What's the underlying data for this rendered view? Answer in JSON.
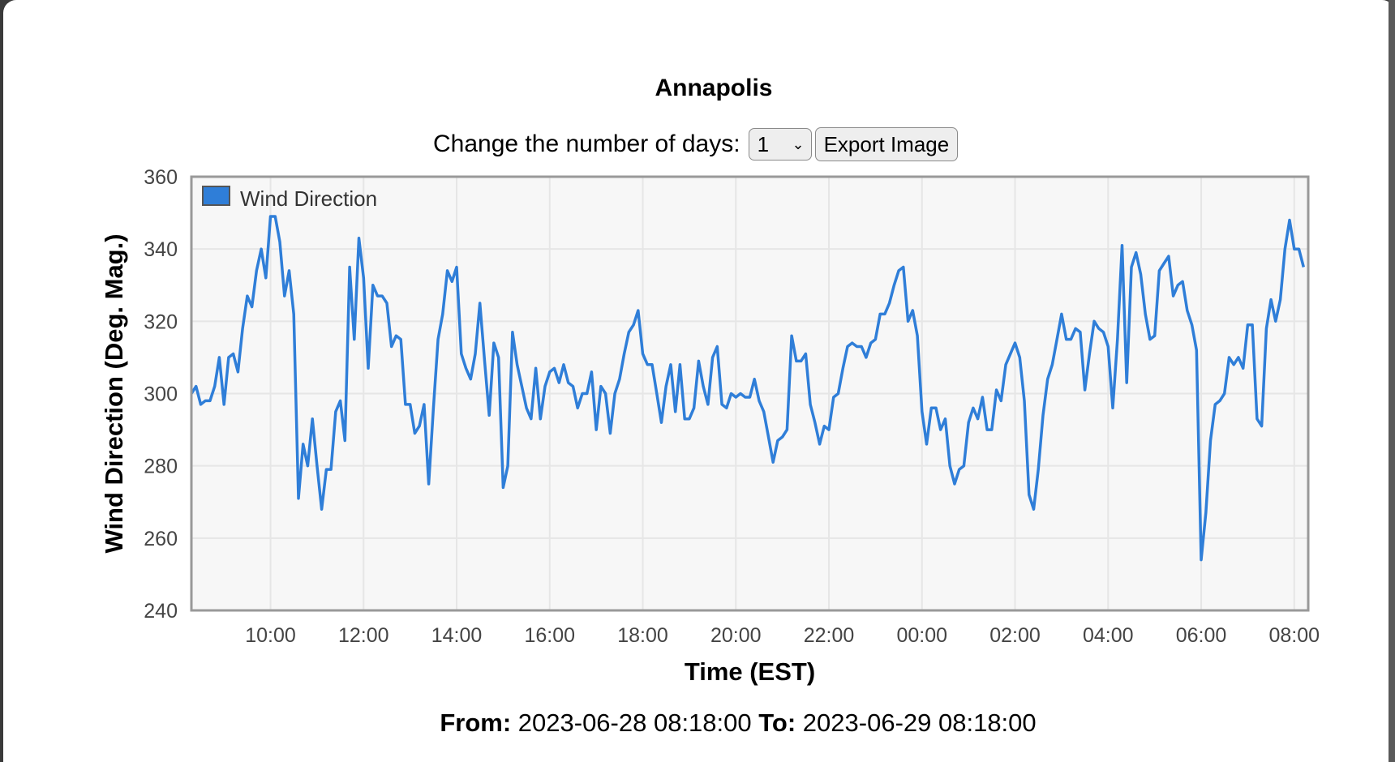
{
  "page": {
    "title": "Annapolis",
    "days_label": "Change the number of days:",
    "days_value": "1",
    "export_label": "Export Image",
    "from_label": "From:",
    "from_value": "2023-06-28 08:18:00",
    "to_label": "To:",
    "to_value": "2023-06-29 08:18:00"
  },
  "colors": {
    "series": "#2f7ed8",
    "plot_bg": "#f7f7f7",
    "grid": "#e6e6e6",
    "border": "#999999"
  },
  "chart_data": {
    "type": "line",
    "title": "Annapolis",
    "xlabel": "Time (EST)",
    "ylabel": "Wind Direction (Deg. Mag.)",
    "ylim": [
      240,
      360
    ],
    "yticks": [
      240,
      260,
      280,
      300,
      320,
      340,
      360
    ],
    "xlim": [
      "2023-06-28 08:18",
      "2023-06-29 08:18"
    ],
    "xticks": [
      "10:00",
      "12:00",
      "14:00",
      "16:00",
      "18:00",
      "20:00",
      "22:00",
      "00:00",
      "02:00",
      "04:00",
      "06:00",
      "08:00"
    ],
    "grid": true,
    "legend": "top-left",
    "series": [
      {
        "name": "Wind Direction",
        "time_start": "2023-06-28 08:18",
        "interval_minutes": 6,
        "values": [
          300,
          302,
          297,
          298,
          298,
          302,
          310,
          297,
          310,
          311,
          306,
          318,
          327,
          324,
          334,
          340,
          332,
          349,
          349,
          342,
          327,
          334,
          322,
          271,
          286,
          280,
          293,
          280,
          268,
          279,
          279,
          295,
          298,
          287,
          335,
          315,
          343,
          332,
          307,
          330,
          327,
          327,
          325,
          313,
          316,
          315,
          297,
          297,
          289,
          291,
          297,
          275,
          296,
          315,
          322,
          334,
          331,
          335,
          311,
          307,
          304,
          311,
          325,
          309,
          294,
          314,
          310,
          274,
          280,
          317,
          308,
          302,
          296,
          293,
          307,
          293,
          302,
          306,
          307,
          303,
          308,
          303,
          302,
          296,
          300,
          300,
          306,
          290,
          302,
          300,
          289,
          300,
          304,
          311,
          317,
          319,
          323,
          311,
          308,
          308,
          300,
          292,
          302,
          308,
          295,
          308,
          293,
          293,
          296,
          309,
          302,
          297,
          310,
          313,
          297,
          296,
          300,
          299,
          300,
          299,
          299,
          304,
          298,
          295,
          288,
          281,
          287,
          288,
          290,
          316,
          309,
          309,
          311,
          297,
          292,
          286,
          291,
          290,
          299,
          300,
          307,
          313,
          314,
          313,
          313,
          310,
          314,
          315,
          322,
          322,
          325,
          330,
          334,
          335,
          320,
          323,
          316,
          295,
          286,
          296,
          296,
          290,
          293,
          280,
          275,
          279,
          280,
          292,
          296,
          293,
          299,
          290,
          290,
          301,
          298,
          308,
          311,
          314,
          310,
          298,
          272,
          268,
          279,
          294,
          304,
          308,
          315,
          322,
          315,
          315,
          318,
          317,
          301,
          311,
          320,
          318,
          317,
          313,
          296,
          315,
          341,
          303,
          335,
          339,
          333,
          322,
          315,
          316,
          334,
          336,
          338,
          327,
          330,
          331,
          323,
          319,
          312,
          254,
          267,
          287,
          297,
          298,
          300,
          310,
          308,
          310,
          307,
          319,
          319,
          293,
          291,
          318,
          326,
          320,
          326,
          340,
          348,
          340,
          340,
          335
        ]
      }
    ]
  }
}
